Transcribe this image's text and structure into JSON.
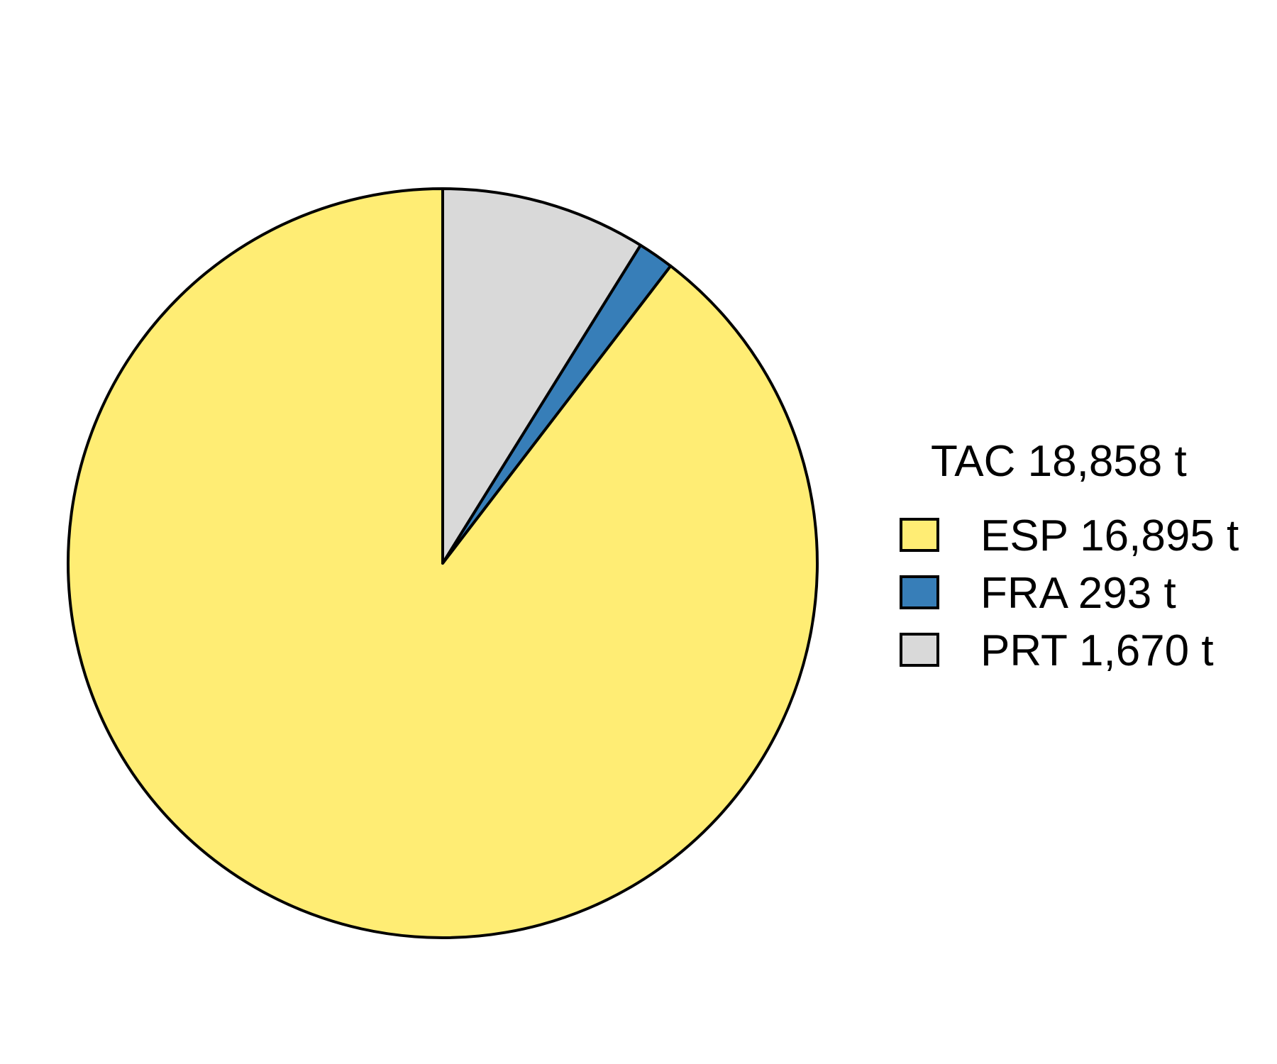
{
  "chart_data": {
    "type": "pie",
    "legend_title": "TAC 18,858 t",
    "legend_position": "right",
    "start": "12 o'clock",
    "direction": "counterclockwise",
    "slices": [
      {
        "key": "ESP",
        "label": "ESP 16,895 t",
        "value": 16895,
        "color": "#FFED74"
      },
      {
        "key": "FRA",
        "label": "FRA 293 t",
        "value": 293,
        "color": "#377EB8"
      },
      {
        "key": "PRT",
        "label": "PRT 1,670 t",
        "value": 1670,
        "color": "#D9D9D9"
      }
    ]
  }
}
